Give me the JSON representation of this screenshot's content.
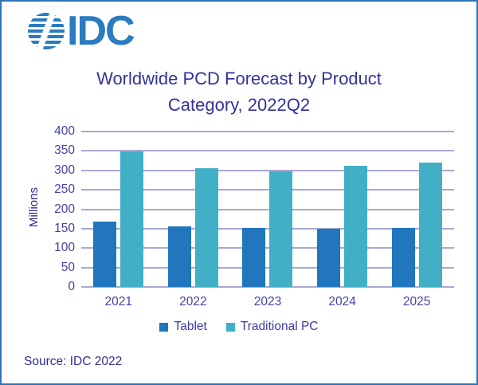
{
  "logo": {
    "text": "IDC",
    "color": "#2b7bc0",
    "icon": "striped-globe-icon"
  },
  "chart_data": {
    "type": "bar",
    "title": "Worldwide PCD Forecast by Product Category, 2022Q2",
    "categories": [
      "2021",
      "2022",
      "2023",
      "2024",
      "2025"
    ],
    "series": [
      {
        "name": "Tablet",
        "color": "#2176bd",
        "values": [
          168,
          156,
          151,
          150,
          152
        ]
      },
      {
        "name": "Traditional PC",
        "color": "#41b0c7",
        "values": [
          349,
          305,
          298,
          311,
          321
        ]
      }
    ],
    "xlabel": "",
    "ylabel": "Millions",
    "ylim": [
      0,
      400
    ],
    "yticks": [
      0,
      50,
      100,
      150,
      200,
      250,
      300,
      350,
      400
    ],
    "grid": "horizontal",
    "legend_position": "bottom",
    "colors": {
      "gridline": "#a9a9d0",
      "title_text": "#32329b",
      "axis_text": "#4343a8",
      "border": "#2e75b6"
    }
  },
  "footer": {
    "source": "Source: IDC 2022"
  }
}
